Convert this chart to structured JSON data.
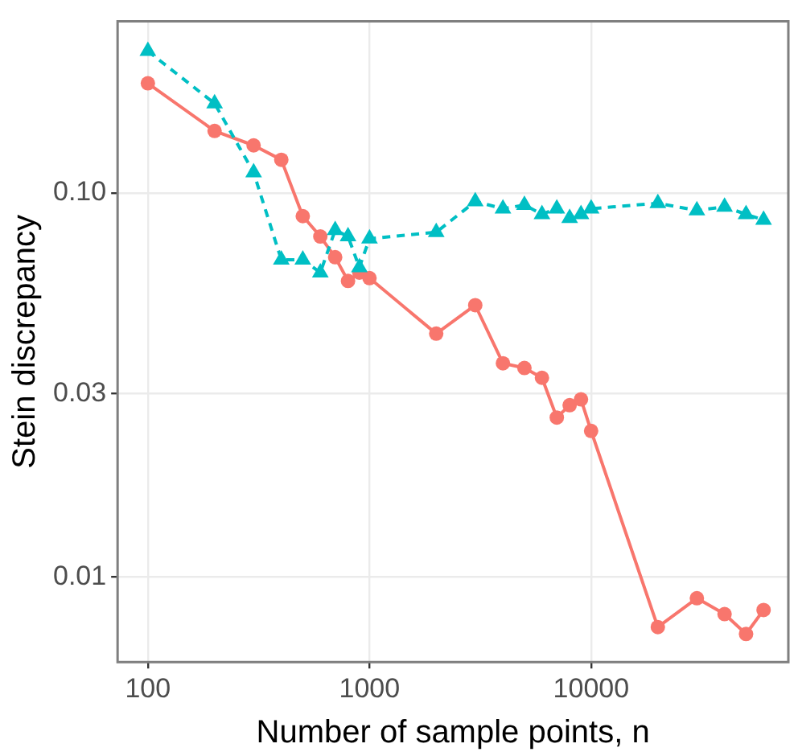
{
  "chart_data": {
    "type": "line",
    "xlabel": "Number of sample points, n",
    "ylabel": "Stein discrepancy",
    "log": "xy",
    "grid": true,
    "legend": false,
    "x": [
      100,
      200,
      300,
      400,
      500,
      600,
      700,
      800,
      900,
      1000,
      2000,
      3000,
      4000,
      5000,
      6000,
      7000,
      8000,
      9000,
      10000,
      20000,
      30000,
      40000,
      50000,
      60000
    ],
    "xlim": [
      73,
      77600
    ],
    "ylim": [
      0.006,
      0.28
    ],
    "xticks": [
      100,
      1000,
      10000
    ],
    "yticks": [
      0.01,
      0.03,
      {
        "value": 0.1,
        "label": "0.10"
      }
    ],
    "series": [
      {
        "color": "#f8766d",
        "marker": "circle",
        "line_style": "solid",
        "values": [
          0.193,
          0.145,
          0.133,
          0.122,
          0.087,
          0.077,
          0.068,
          0.059,
          0.062,
          0.06,
          0.043,
          0.051,
          0.036,
          0.035,
          0.033,
          0.026,
          0.028,
          0.029,
          0.024,
          0.0074,
          0.0088,
          0.008,
          0.0071,
          0.0082
        ]
      },
      {
        "color": "#00bfc4",
        "marker": "triangle",
        "line_style": "dashed",
        "values": [
          0.234,
          0.171,
          0.113,
          0.067,
          0.067,
          0.062,
          0.08,
          0.077,
          0.064,
          0.076,
          0.079,
          0.095,
          0.091,
          0.093,
          0.088,
          0.091,
          0.086,
          0.088,
          0.091,
          0.094,
          0.09,
          0.092,
          0.088,
          0.085
        ]
      }
    ]
  }
}
